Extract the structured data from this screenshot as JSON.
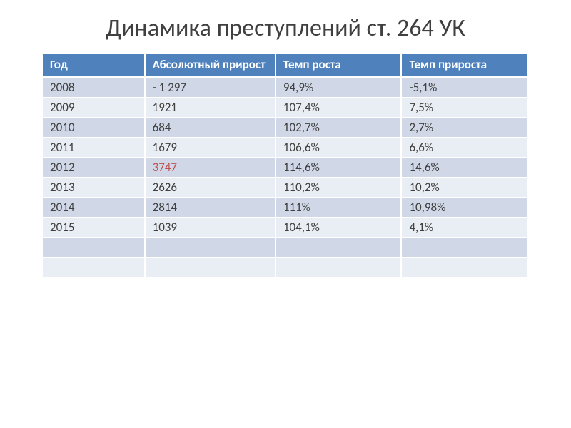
{
  "title": "Динамика преступлений ст. 264 УК",
  "table": {
    "columns": [
      "Год",
      "Абсолютный прирост",
      "Темп роста",
      "Темп прироста"
    ],
    "column_widths": [
      "21%",
      "27%",
      "26%",
      "26%"
    ],
    "header_bg_color": "#4f81bd",
    "header_text_color": "#ffffff",
    "header_border_color": "#ffffff",
    "row_colors": [
      "#d0d8e8",
      "#e9edf4"
    ],
    "row_border_color": "#ffffff",
    "highlight_color": "#c0504d",
    "text_color": "#404040",
    "rows": [
      {
        "year": "2008",
        "abs_growth": "- 1 297",
        "growth_rate": "94,9%",
        "incr_rate": "-5,1%",
        "highlight_abs": false
      },
      {
        "year": "2009",
        "abs_growth": "1921",
        "growth_rate": "107,4%",
        "incr_rate": "7,5%",
        "highlight_abs": false
      },
      {
        "year": "2010",
        "abs_growth": "684",
        "growth_rate": "102,7%",
        "incr_rate": "2,7%",
        "highlight_abs": false
      },
      {
        "year": "2011",
        "abs_growth": "1679",
        "growth_rate": "106,6%",
        "incr_rate": "6,6%",
        "highlight_abs": false
      },
      {
        "year": "2012",
        "abs_growth": "3747",
        "growth_rate": "114,6%",
        "incr_rate": "14,6%",
        "highlight_abs": true
      },
      {
        "year": "2013",
        "abs_growth": "2626",
        "growth_rate": "110,2%",
        "incr_rate": "10,2%",
        "highlight_abs": false
      },
      {
        "year": "2014",
        "abs_growth": "2814",
        "growth_rate": "111%",
        "incr_rate": "10,98%",
        "highlight_abs": false
      },
      {
        "year": "2015",
        "abs_growth": "1039",
        "growth_rate": "104,1%",
        "incr_rate": "4,1%",
        "highlight_abs": false
      }
    ],
    "empty_rows": 2
  }
}
